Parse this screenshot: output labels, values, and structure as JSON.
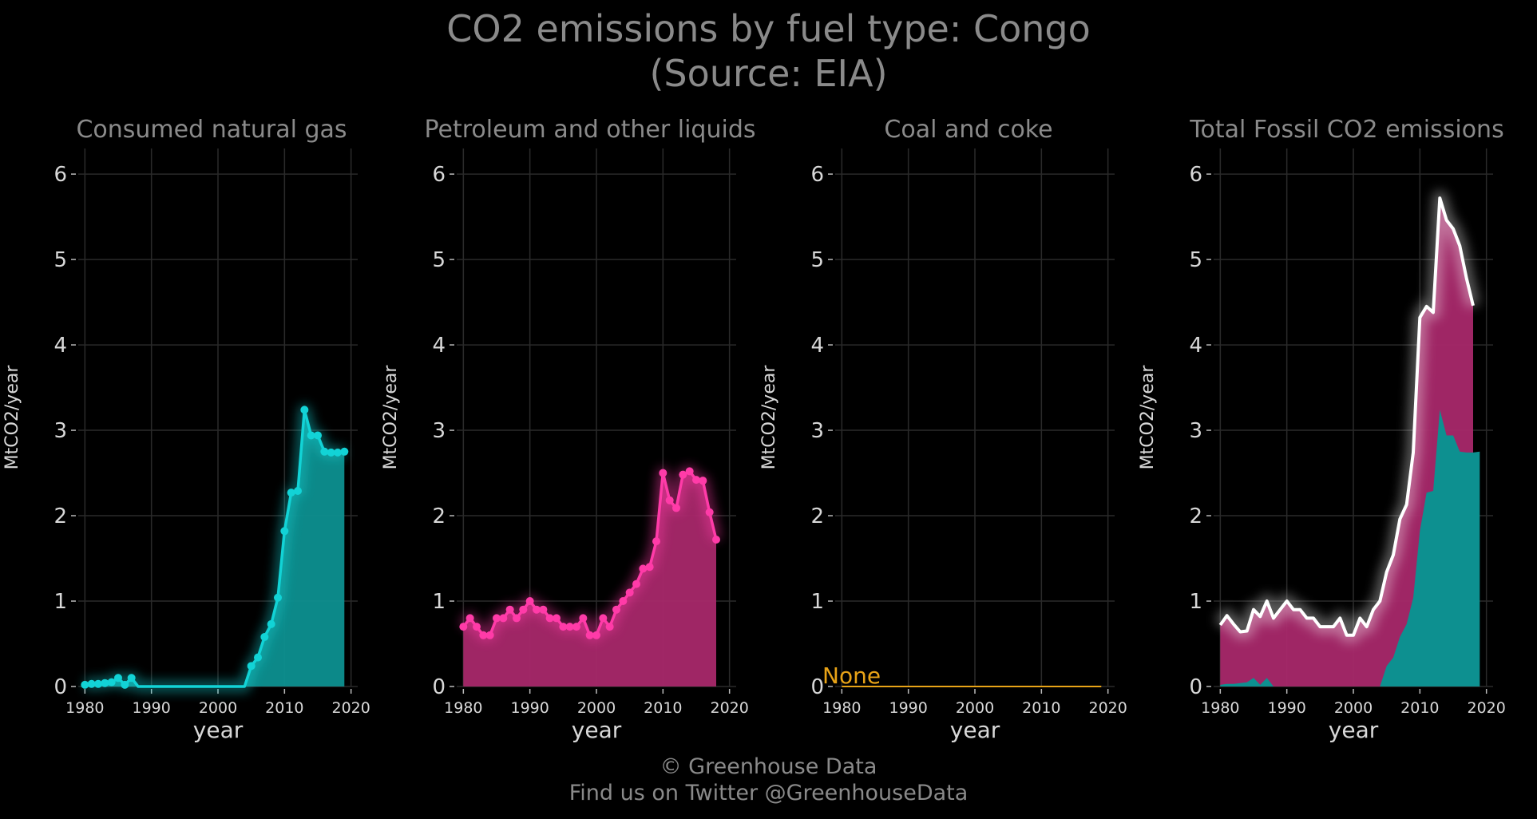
{
  "title": {
    "line1": "CO2 emissions by fuel type: Congo",
    "line2": "(Source: EIA)"
  },
  "footer": {
    "line1": "© Greenhouse Data",
    "line2": "Find us on Twitter @GreenhouseData"
  },
  "colors": {
    "background": "#000000",
    "gas": "#12d3d6",
    "gas_fill": "#0d9090",
    "petroleum": "#ff3ba8",
    "petroleum_fill": "#a8286a",
    "total_line": "#ffffff",
    "none_text": "#e8a317",
    "grid": "#2a2a2a",
    "title_text": "#8a8a8a"
  },
  "chart_data": [
    {
      "type": "area",
      "title": "Consumed natural gas",
      "xlabel": "year",
      "ylabel": "MtCO2/year",
      "xlim": [
        1979,
        2021
      ],
      "ylim": [
        0,
        6.3
      ],
      "xticks": [
        1980,
        1990,
        2000,
        2010,
        2020
      ],
      "yticks": [
        0,
        1,
        2,
        3,
        4,
        5,
        6
      ],
      "series": [
        {
          "x": [
            1980,
            1981,
            1982,
            1983,
            1984,
            1985,
            1986,
            1987,
            1988,
            1989,
            1990,
            1991,
            1992,
            1993,
            1994,
            1995,
            1996,
            1997,
            1998,
            1999,
            2000,
            2001,
            2002,
            2003,
            2004,
            2005,
            2006,
            2007,
            2008,
            2009,
            2010,
            2011,
            2012,
            2013,
            2014,
            2015,
            2016,
            2017,
            2018,
            2019
          ],
          "y": [
            0.02,
            0.03,
            0.03,
            0.04,
            0.05,
            0.1,
            0.02,
            0.1,
            0,
            0,
            0,
            0,
            0,
            0,
            0,
            0,
            0,
            0,
            0,
            0,
            0,
            0,
            0,
            0,
            0,
            0.24,
            0.34,
            0.58,
            0.73,
            1.04,
            1.82,
            2.27,
            2.29,
            3.24,
            2.94,
            2.94,
            2.75,
            2.74,
            2.74,
            2.75
          ]
        }
      ],
      "markers_from": 5
    },
    {
      "type": "area",
      "title": "Petroleum and other liquids",
      "xlabel": "year",
      "ylabel": "MtCO2/year",
      "xlim": [
        1979,
        2021
      ],
      "ylim": [
        0,
        6.3
      ],
      "xticks": [
        1980,
        1990,
        2000,
        2010,
        2020
      ],
      "yticks": [
        0,
        1,
        2,
        3,
        4,
        5,
        6
      ],
      "series": [
        {
          "x": [
            1980,
            1981,
            1982,
            1983,
            1984,
            1985,
            1986,
            1987,
            1988,
            1989,
            1990,
            1991,
            1992,
            1993,
            1994,
            1995,
            1996,
            1997,
            1998,
            1999,
            2000,
            2001,
            2002,
            2003,
            2004,
            2005,
            2006,
            2007,
            2008,
            2009,
            2010,
            2011,
            2012,
            2013,
            2014,
            2015,
            2016,
            2017,
            2018
          ],
          "y": [
            0.7,
            0.8,
            0.7,
            0.6,
            0.6,
            0.8,
            0.8,
            0.9,
            0.8,
            0.9,
            1.0,
            0.9,
            0.9,
            0.8,
            0.8,
            0.7,
            0.7,
            0.7,
            0.8,
            0.6,
            0.6,
            0.8,
            0.7,
            0.9,
            1.0,
            1.1,
            1.2,
            1.38,
            1.4,
            1.7,
            2.5,
            2.18,
            2.09,
            2.48,
            2.52,
            2.42,
            2.41,
            2.04,
            1.72
          ]
        }
      ]
    },
    {
      "type": "line",
      "title": "Coal and coke",
      "xlabel": "year",
      "ylabel": "MtCO2/year",
      "xlim": [
        1979,
        2021
      ],
      "ylim": [
        0,
        6.3
      ],
      "xticks": [
        1980,
        1990,
        2000,
        2010,
        2020
      ],
      "yticks": [
        0,
        1,
        2,
        3,
        4,
        5,
        6
      ],
      "annotation": "None",
      "series": [
        {
          "x": [
            1980,
            2019
          ],
          "y": [
            0,
            0
          ]
        }
      ]
    },
    {
      "type": "area",
      "title": "Total Fossil CO2 emissions",
      "xlabel": "year",
      "ylabel": "MtCO2/year",
      "xlim": [
        1979,
        2021
      ],
      "ylim": [
        0,
        6.3
      ],
      "xticks": [
        1980,
        1990,
        2000,
        2010,
        2020
      ],
      "yticks": [
        0,
        1,
        2,
        3,
        4,
        5,
        6
      ],
      "series": [
        {
          "x": [
            1980,
            1981,
            1982,
            1983,
            1984,
            1985,
            1986,
            1987,
            1988,
            1989,
            1990,
            1991,
            1992,
            1993,
            1994,
            1995,
            1996,
            1997,
            1998,
            1999,
            2000,
            2001,
            2002,
            2003,
            2004,
            2005,
            2006,
            2007,
            2008,
            2009,
            2010,
            2011,
            2012,
            2013,
            2014,
            2015,
            2016,
            2017,
            2018
          ],
          "y": [
            0.72,
            0.83,
            0.73,
            0.64,
            0.65,
            0.9,
            0.82,
            1.0,
            0.8,
            0.9,
            1.0,
            0.9,
            0.9,
            0.8,
            0.8,
            0.7,
            0.7,
            0.7,
            0.8,
            0.6,
            0.6,
            0.8,
            0.7,
            0.9,
            1.0,
            1.34,
            1.54,
            1.96,
            2.13,
            2.74,
            4.32,
            4.45,
            4.38,
            5.72,
            5.46,
            5.36,
            5.16,
            4.78,
            4.46
          ]
        }
      ]
    }
  ]
}
